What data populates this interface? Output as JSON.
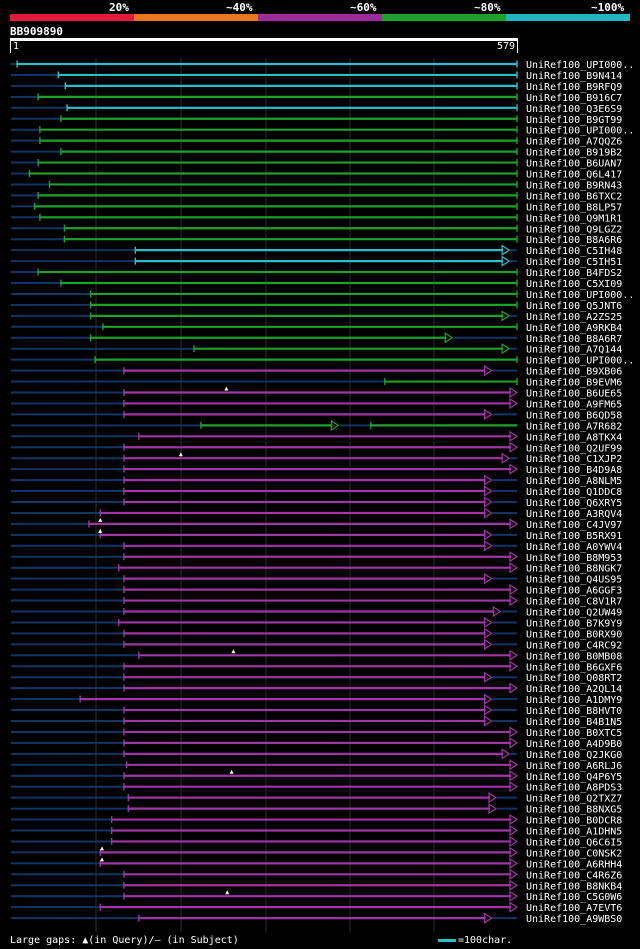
{
  "legend": {
    "labels": [
      "20%",
      "~40%",
      "~60%",
      "~80%",
      "~100%"
    ],
    "colors": [
      "#e41a3c",
      "#e87722",
      "#9b2c9c",
      "#1ea12a",
      "#22b5c2"
    ]
  },
  "query": {
    "title": "BB909890",
    "start": "1",
    "end": "579"
  },
  "colors": {
    "cyan": "#2bc0c8",
    "green": "#1ea12a",
    "purple": "#a035a5",
    "gap": "#123463"
  },
  "hits": [
    {
      "id": "UniRef100_UPI000..",
      "color": "cyan",
      "start": 8,
      "end": 579,
      "arrow": false
    },
    {
      "id": "UniRef100_B9N414",
      "color": "cyan",
      "start": 55,
      "end": 579,
      "arrow": false
    },
    {
      "id": "UniRef100_B9RFQ9",
      "color": "cyan",
      "start": 63,
      "end": 579,
      "arrow": false
    },
    {
      "id": "UniRef100_B916C7",
      "color": "green",
      "start": 32,
      "end": 579,
      "arrow": false
    },
    {
      "id": "UniRef100_Q3E6S9",
      "color": "cyan",
      "start": 65,
      "end": 579,
      "arrow": false
    },
    {
      "id": "UniRef100_B9GT99",
      "color": "green",
      "start": 58,
      "end": 579,
      "arrow": false
    },
    {
      "id": "UniRef100_UPI000..",
      "color": "green",
      "start": 34,
      "end": 579,
      "arrow": false
    },
    {
      "id": "UniRef100_A7QQZ6",
      "color": "green",
      "start": 34,
      "end": 579,
      "arrow": false
    },
    {
      "id": "UniRef100_B919B2",
      "color": "green",
      "start": 58,
      "end": 579,
      "arrow": false
    },
    {
      "id": "UniRef100_B6UAN7",
      "color": "green",
      "start": 32,
      "end": 579,
      "arrow": false
    },
    {
      "id": "UniRef100_Q6L417",
      "color": "green",
      "start": 22,
      "end": 579,
      "arrow": false
    },
    {
      "id": "UniRef100_B9RN43",
      "color": "green",
      "start": 45,
      "end": 579,
      "arrow": false
    },
    {
      "id": "UniRef100_B6TXC2",
      "color": "green",
      "start": 32,
      "end": 579,
      "arrow": false
    },
    {
      "id": "UniRef100_B8LP57",
      "color": "green",
      "start": 28,
      "end": 579,
      "arrow": false
    },
    {
      "id": "UniRef100_Q9M1R1",
      "color": "green",
      "start": 34,
      "end": 579,
      "arrow": false
    },
    {
      "id": "UniRef100_Q9LGZ2",
      "color": "green",
      "start": 62,
      "end": 579,
      "arrow": false
    },
    {
      "id": "UniRef100_B8A6R6",
      "color": "green",
      "start": 62,
      "end": 579,
      "arrow": false
    },
    {
      "id": "UniRef100_C5IH48",
      "color": "cyan",
      "start": 143,
      "end": 570,
      "arrow": true
    },
    {
      "id": "UniRef100_C5IH51",
      "color": "cyan",
      "start": 143,
      "end": 570,
      "arrow": true
    },
    {
      "id": "UniRef100_B4FDS2",
      "color": "green",
      "start": 32,
      "end": 579,
      "arrow": false
    },
    {
      "id": "UniRef100_C5XI09",
      "color": "green",
      "start": 58,
      "end": 579,
      "arrow": false
    },
    {
      "id": "UniRef100_UPI000..",
      "color": "green",
      "start": 92,
      "end": 579,
      "arrow": false
    },
    {
      "id": "UniRef100_Q5JNT6",
      "color": "green",
      "start": 92,
      "end": 579,
      "arrow": false
    },
    {
      "id": "UniRef100_A2ZS25",
      "color": "green",
      "start": 92,
      "end": 570,
      "arrow": true
    },
    {
      "id": "UniRef100_A9RKB4",
      "color": "green",
      "start": 106,
      "end": 579,
      "arrow": false
    },
    {
      "id": "UniRef100_B8A6R7",
      "color": "green",
      "start": 92,
      "end": 505,
      "arrow": true
    },
    {
      "id": "UniRef100_A7Q144",
      "color": "green",
      "start": 210,
      "end": 570,
      "arrow": true
    },
    {
      "id": "UniRef100_UPI000..",
      "color": "green",
      "start": 97,
      "end": 579,
      "arrow": false
    },
    {
      "id": "UniRef100_B9XB06",
      "color": "purple",
      "start": 130,
      "end": 550,
      "arrow": true
    },
    {
      "id": "UniRef100_B9EVM6",
      "color": "green",
      "start": 428,
      "end": 579,
      "arrow": false
    },
    {
      "id": "UniRef100_B6UE65",
      "color": "purple",
      "start": 130,
      "end": 579,
      "arrow": true,
      "gap": 247
    },
    {
      "id": "UniRef100_A9FM65",
      "color": "purple",
      "start": 130,
      "end": 579,
      "arrow": true
    },
    {
      "id": "UniRef100_B6QD58",
      "color": "purple",
      "start": 130,
      "end": 550,
      "arrow": true
    },
    {
      "id": "UniRef100_A7R682",
      "color": "green",
      "start": 218,
      "end": 375,
      "arrow": true,
      "extra": {
        "start": 412,
        "end": 579
      }
    },
    {
      "id": "UniRef100_A8TKX4",
      "color": "purple",
      "start": 147,
      "end": 579,
      "arrow": true
    },
    {
      "id": "UniRef100_Q2UF99",
      "color": "purple",
      "start": 130,
      "end": 579,
      "arrow": true
    },
    {
      "id": "UniRef100_C1XJP2",
      "color": "purple",
      "start": 130,
      "end": 570,
      "arrow": true,
      "gap": 195
    },
    {
      "id": "UniRef100_B4D9A8",
      "color": "purple",
      "start": 130,
      "end": 579,
      "arrow": true
    },
    {
      "id": "UniRef100_A8NLM5",
      "color": "purple",
      "start": 130,
      "end": 550,
      "arrow": true
    },
    {
      "id": "UniRef100_Q1DDC8",
      "color": "purple",
      "start": 130,
      "end": 550,
      "arrow": true
    },
    {
      "id": "UniRef100_Q6XRY5",
      "color": "purple",
      "start": 130,
      "end": 550,
      "arrow": true
    },
    {
      "id": "UniRef100_A3RQV4",
      "color": "purple",
      "start": 103,
      "end": 550,
      "arrow": true
    },
    {
      "id": "UniRef100_C4JV97",
      "color": "purple",
      "start": 90,
      "end": 579,
      "arrow": true,
      "gap": 103
    },
    {
      "id": "UniRef100_B5RX91",
      "color": "purple",
      "start": 103,
      "end": 550,
      "arrow": true,
      "gap": 103
    },
    {
      "id": "UniRef100_A0YWV4",
      "color": "purple",
      "start": 130,
      "end": 550,
      "arrow": true
    },
    {
      "id": "UniRef100_B8M953",
      "color": "purple",
      "start": 130,
      "end": 579,
      "arrow": true
    },
    {
      "id": "UniRef100_B8NGK7",
      "color": "purple",
      "start": 124,
      "end": 579,
      "arrow": true
    },
    {
      "id": "UniRef100_Q4US95",
      "color": "purple",
      "start": 130,
      "end": 550,
      "arrow": true
    },
    {
      "id": "UniRef100_A6GGF3",
      "color": "purple",
      "start": 130,
      "end": 579,
      "arrow": true
    },
    {
      "id": "UniRef100_C8V1R7",
      "color": "purple",
      "start": 130,
      "end": 579,
      "arrow": true
    },
    {
      "id": "UniRef100_Q2UW49",
      "color": "purple",
      "start": 130,
      "end": 560,
      "arrow": true
    },
    {
      "id": "UniRef100_B7K9Y9",
      "color": "purple",
      "start": 124,
      "end": 550,
      "arrow": true
    },
    {
      "id": "UniRef100_B0RX90",
      "color": "purple",
      "start": 130,
      "end": 550,
      "arrow": true
    },
    {
      "id": "UniRef100_C4RC92",
      "color": "purple",
      "start": 130,
      "end": 550,
      "arrow": true
    },
    {
      "id": "UniRef100_B0MB08",
      "color": "purple",
      "start": 147,
      "end": 579,
      "arrow": true,
      "gap": 255
    },
    {
      "id": "UniRef100_B6GXF6",
      "color": "purple",
      "start": 130,
      "end": 579,
      "arrow": true
    },
    {
      "id": "UniRef100_Q08RT2",
      "color": "purple",
      "start": 130,
      "end": 550,
      "arrow": true
    },
    {
      "id": "UniRef100_A2QL14",
      "color": "purple",
      "start": 130,
      "end": 579,
      "arrow": true
    },
    {
      "id": "UniRef100_A1DMY9",
      "color": "purple",
      "start": 80,
      "end": 550,
      "arrow": true
    },
    {
      "id": "UniRef100_B8HVT0",
      "color": "purple",
      "start": 130,
      "end": 550,
      "arrow": true
    },
    {
      "id": "UniRef100_B4B1N5",
      "color": "purple",
      "start": 130,
      "end": 550,
      "arrow": true
    },
    {
      "id": "UniRef100_B0XTC5",
      "color": "purple",
      "start": 130,
      "end": 579,
      "arrow": true
    },
    {
      "id": "UniRef100_A4D9B0",
      "color": "purple",
      "start": 130,
      "end": 579,
      "arrow": true
    },
    {
      "id": "UniRef100_Q2JKG0",
      "color": "purple",
      "start": 130,
      "end": 570,
      "arrow": true
    },
    {
      "id": "UniRef100_A6RLJ6",
      "color": "purple",
      "start": 133,
      "end": 579,
      "arrow": true
    },
    {
      "id": "UniRef100_Q4P6Y5",
      "color": "purple",
      "start": 130,
      "end": 579,
      "arrow": true,
      "gap": 253
    },
    {
      "id": "UniRef100_A8PDS3",
      "color": "purple",
      "start": 130,
      "end": 579,
      "arrow": true
    },
    {
      "id": "UniRef100_Q2TXZ7",
      "color": "purple",
      "start": 135,
      "end": 555,
      "arrow": true
    },
    {
      "id": "UniRef100_B8NXG5",
      "color": "purple",
      "start": 135,
      "end": 555,
      "arrow": true
    },
    {
      "id": "UniRef100_B0DCR8",
      "color": "purple",
      "start": 116,
      "end": 579,
      "arrow": true
    },
    {
      "id": "UniRef100_A1DHN5",
      "color": "purple",
      "start": 116,
      "end": 579,
      "arrow": true
    },
    {
      "id": "UniRef100_Q6C6I5",
      "color": "purple",
      "start": 116,
      "end": 579,
      "arrow": true
    },
    {
      "id": "UniRef100_C0NSK2",
      "color": "purple",
      "start": 103,
      "end": 579,
      "arrow": true,
      "gap": 105
    },
    {
      "id": "UniRef100_A6RHH4",
      "color": "purple",
      "start": 103,
      "end": 579,
      "arrow": true,
      "gap": 105
    },
    {
      "id": "UniRef100_C4R6Z6",
      "color": "purple",
      "start": 130,
      "end": 579,
      "arrow": true
    },
    {
      "id": "UniRef100_B8NKB4",
      "color": "purple",
      "start": 130,
      "end": 579,
      "arrow": true
    },
    {
      "id": "UniRef100_C5G0W6",
      "color": "purple",
      "start": 130,
      "end": 579,
      "arrow": true,
      "gap": 248
    },
    {
      "id": "UniRef100_A7EVT6",
      "color": "purple",
      "start": 103,
      "end": 579,
      "arrow": true
    },
    {
      "id": "UniRef100_A9WBS0",
      "color": "purple",
      "start": 147,
      "end": 550,
      "arrow": true
    }
  ],
  "footer": {
    "text": "Large gaps: ▲(in Query)/— (in Subject)",
    "scale_text": "=100char."
  }
}
